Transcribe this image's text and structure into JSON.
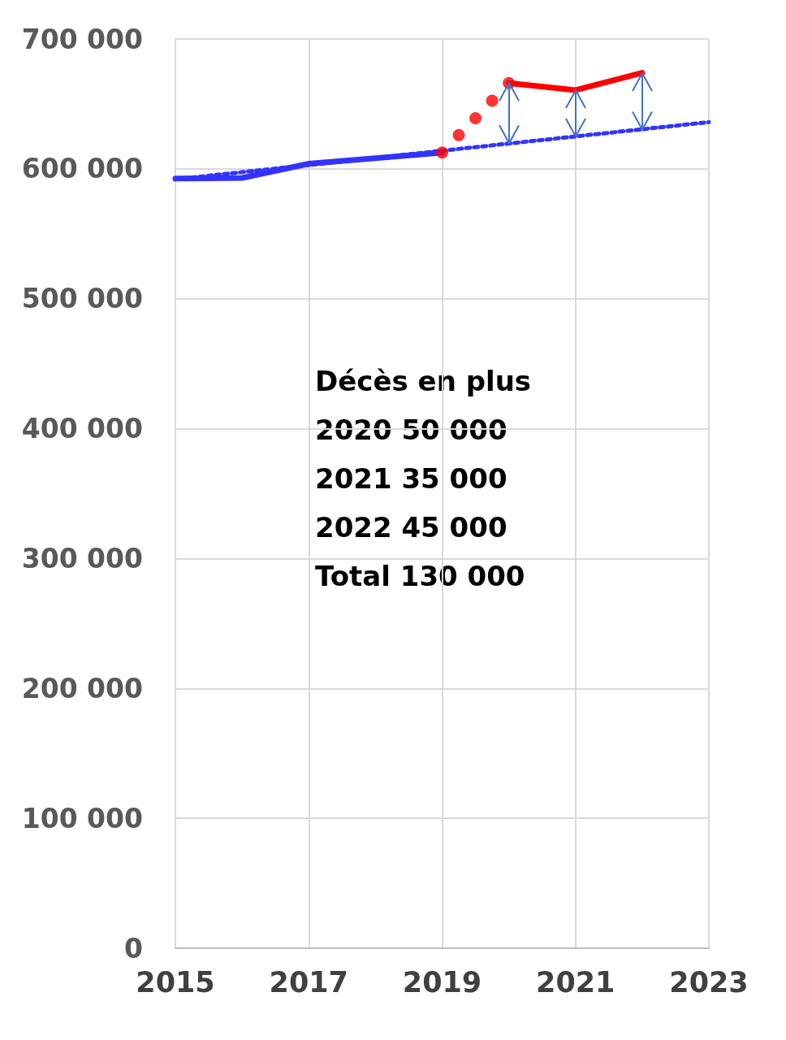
{
  "chart_data": {
    "type": "line",
    "xlim": [
      2015,
      2023
    ],
    "xticks": [
      2015,
      2017,
      2019,
      2021,
      2023
    ],
    "ylim": [
      0,
      700000
    ],
    "yticks": [
      {
        "value": 0,
        "label": "0"
      },
      {
        "value": 100000,
        "label": "100 000"
      },
      {
        "value": 200000,
        "label": "200 000"
      },
      {
        "value": 300000,
        "label": "300 000"
      },
      {
        "value": 400000,
        "label": "400 000"
      },
      {
        "value": 500000,
        "label": "500 000"
      },
      {
        "value": 600000,
        "label": "600 000"
      },
      {
        "value": 700000,
        "label": "700 000"
      }
    ],
    "grid": true,
    "series": [
      {
        "color": "#3333ff",
        "line_style": "dotted",
        "marker": "none",
        "x": [
          2015,
          2016,
          2017,
          2018,
          2019,
          2020,
          2021,
          2022,
          2023
        ],
        "values": [
          592000,
          597500,
          603000,
          608500,
          614000,
          619500,
          625000,
          630500,
          636000
        ]
      },
      {
        "color": "#3333ff",
        "line_style": "solid",
        "marker": "none",
        "x": [
          2015,
          2016,
          2017,
          2019
        ],
        "values": [
          592500,
          593000,
          604000,
          612500
        ]
      },
      {
        "type": "scatter",
        "color": "#ff0000",
        "marker": "circle",
        "x": [
          2019,
          2019.25,
          2019.5,
          2019.75,
          2020
        ],
        "values": [
          612500,
          626000,
          639000,
          652500,
          666000
        ]
      },
      {
        "color": "#ff0000",
        "line_style": "solid",
        "marker": "none",
        "x": [
          2020,
          2021,
          2022
        ],
        "values": [
          666000,
          660600,
          674000
        ]
      }
    ],
    "annotations": [
      "Décès en plus",
      "2020 50 000",
      "2021 35 000",
      "2022 45 000",
      "Total 130 000"
    ]
  }
}
